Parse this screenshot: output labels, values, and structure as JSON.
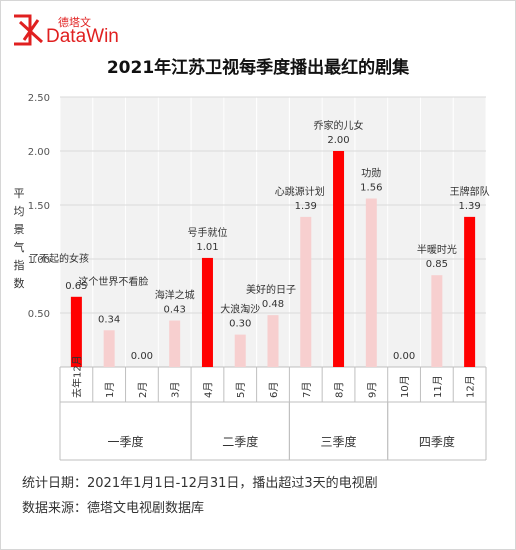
{
  "brand": {
    "name_cn": "德塔文",
    "name_en": "DataWin",
    "logo_icon": "datawin-logo-icon",
    "color": "#e02020"
  },
  "title": "2021年江苏卫视每季度播出最红的剧集",
  "footer": {
    "stat_date": "统计日期：2021年1月1日-12月31日，播出超过3天的电视剧",
    "source": "数据来源：德塔文电视剧数据库"
  },
  "chart_data": {
    "type": "bar",
    "title": "2021年江苏卫视每季度播出最红的剧集",
    "ylabel": "平均景气指数",
    "xlabel": "",
    "ylim": [
      0,
      2.5
    ],
    "yticks": [
      "0.50",
      "1.00",
      "1.50",
      "2.00",
      "2.50"
    ],
    "grid": true,
    "categories": [
      "去年12月",
      "1月",
      "2月",
      "3月",
      "4月",
      "5月",
      "6月",
      "7月",
      "8月",
      "9月",
      "10月",
      "11月",
      "12月"
    ],
    "values": [
      0.65,
      0.34,
      0.0,
      0.43,
      1.01,
      0.3,
      0.48,
      1.39,
      2.0,
      1.56,
      0.0,
      0.85,
      1.39
    ],
    "value_labels": [
      "0.65",
      "0.34",
      "0.00",
      "0.43",
      "1.01",
      "0.30",
      "0.48",
      "1.39",
      "2.00",
      "1.56",
      "0.00",
      "0.85",
      "1.39"
    ],
    "drama_names": [
      "了不起的女孩",
      "",
      "",
      "海洋之城",
      "号手就位",
      "大浪淘沙",
      "美好的日子",
      "心跳源计划",
      "乔家的儿女",
      "功勋",
      "",
      "半暖时光",
      "王牌部队"
    ],
    "extra_names": [
      {
        "index": 0,
        "name": "这个世界不看脸"
      }
    ],
    "highlight": [
      true,
      false,
      false,
      false,
      true,
      false,
      false,
      false,
      true,
      false,
      false,
      false,
      true
    ],
    "quarters": [
      {
        "label": "一季度",
        "start": 0,
        "end": 3
      },
      {
        "label": "二季度",
        "start": 4,
        "end": 6
      },
      {
        "label": "三季度",
        "start": 7,
        "end": 9
      },
      {
        "label": "四季度",
        "start": 10,
        "end": 12
      }
    ],
    "colors": {
      "highlight": "#ff0000",
      "normal": "#f7cfcf",
      "grid": "#d9d9d9",
      "plot_bg": "#f2f2f2"
    }
  }
}
